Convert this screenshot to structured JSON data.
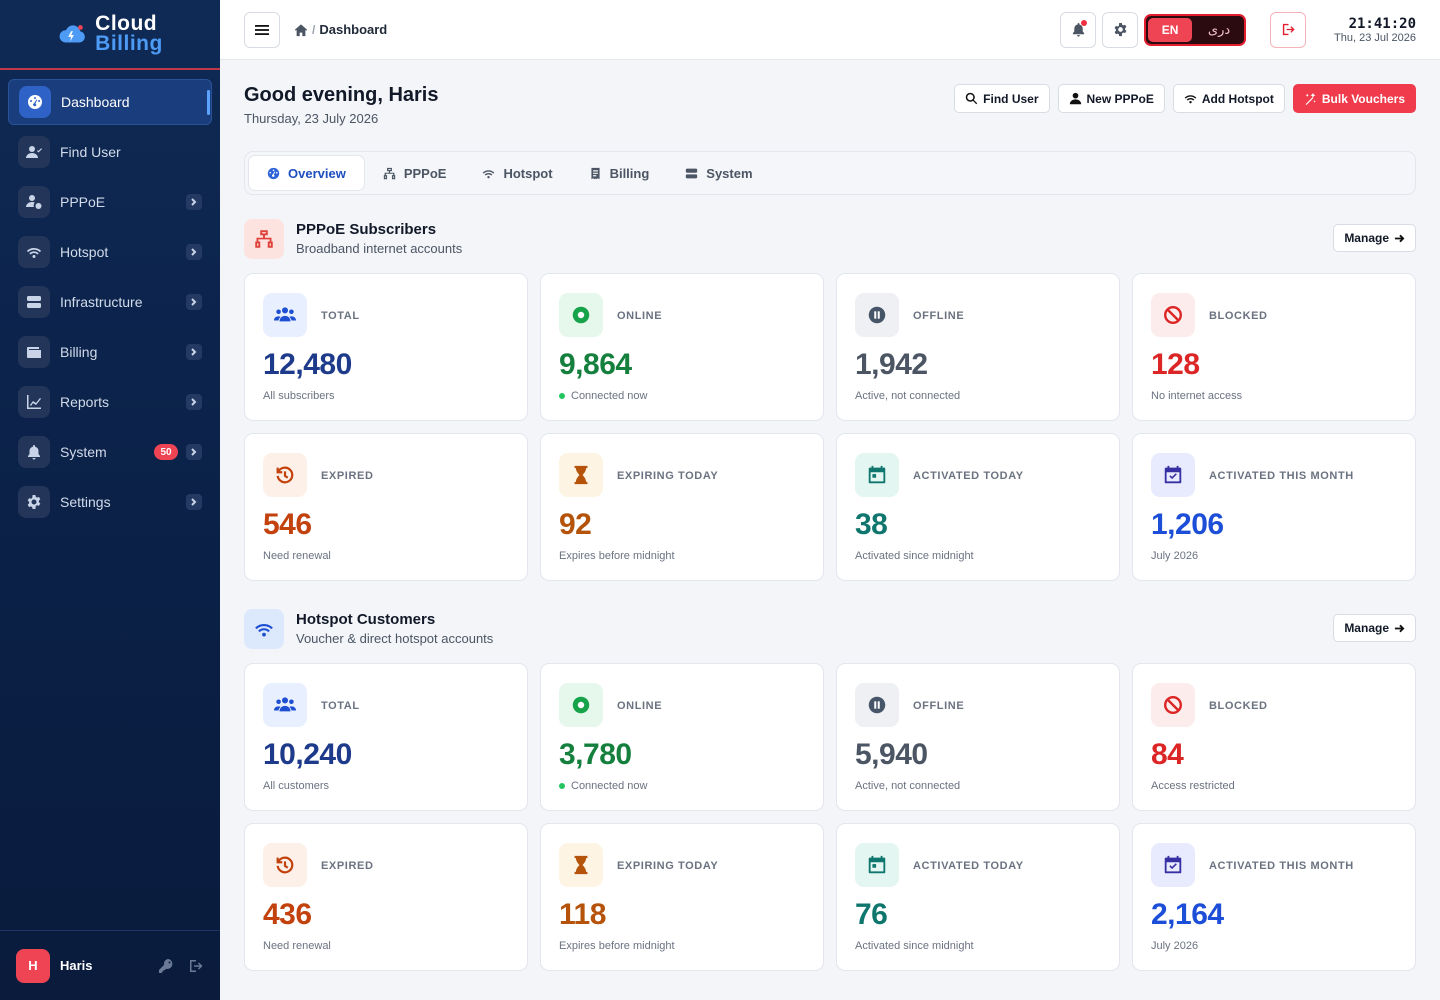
{
  "brand": {
    "line1": "Cloud",
    "line2": "Billing"
  },
  "sidebar": {
    "items": [
      {
        "label": "Dashboard",
        "icon": "gauge-icon",
        "active": true
      },
      {
        "label": "Find User",
        "icon": "user-check-icon"
      },
      {
        "label": "PPPoE",
        "icon": "user-network-icon"
      },
      {
        "label": "Hotspot",
        "icon": "wifi-icon"
      },
      {
        "label": "Infrastructure",
        "icon": "server-icon"
      },
      {
        "label": "Billing",
        "icon": "wallet-icon"
      },
      {
        "label": "Reports",
        "icon": "chart-line-icon"
      },
      {
        "label": "System",
        "icon": "bell-icon",
        "badge": "50"
      },
      {
        "label": "Settings",
        "icon": "gear-icon"
      }
    ]
  },
  "user": {
    "initial": "H",
    "name": "Haris"
  },
  "topbar": {
    "breadcrumb": "Dashboard",
    "lang_active": "EN",
    "lang_other": "دری",
    "time": "21:41:20",
    "date": "Thu, 23 Jul 2026"
  },
  "greeting": {
    "title": "Good evening, Haris",
    "date": "Thursday, 23 July 2026"
  },
  "actions": {
    "find_user": "Find User",
    "new_pppoe": "New PPPoE",
    "add_hotspot": "Add Hotspot",
    "bulk_vouchers": "Bulk Vouchers"
  },
  "tabs": [
    "Overview",
    "PPPoE",
    "Hotspot",
    "Billing",
    "System"
  ],
  "manage_label": "Manage",
  "pppoe": {
    "title": "PPPoE Subscribers",
    "subtitle": "Broadband internet accounts",
    "cards": [
      {
        "label": "TOTAL",
        "value": "12,480",
        "note": "All subscribers"
      },
      {
        "label": "ONLINE",
        "value": "9,864",
        "note": "Connected now"
      },
      {
        "label": "OFFLINE",
        "value": "1,942",
        "note": "Active, not connected"
      },
      {
        "label": "BLOCKED",
        "value": "128",
        "note": "No internet access"
      },
      {
        "label": "EXPIRED",
        "value": "546",
        "note": "Need renewal"
      },
      {
        "label": "EXPIRING TODAY",
        "value": "92",
        "note": "Expires before midnight"
      },
      {
        "label": "ACTIVATED TODAY",
        "value": "38",
        "note": "Activated since midnight"
      },
      {
        "label": "ACTIVATED THIS MONTH",
        "value": "1,206",
        "note": "July 2026"
      }
    ]
  },
  "hotspot": {
    "title": "Hotspot Customers",
    "subtitle": "Voucher & direct hotspot accounts",
    "cards": [
      {
        "label": "TOTAL",
        "value": "10,240",
        "note": "All customers"
      },
      {
        "label": "ONLINE",
        "value": "3,780",
        "note": "Connected now"
      },
      {
        "label": "OFFLINE",
        "value": "5,940",
        "note": "Active, not connected"
      },
      {
        "label": "BLOCKED",
        "value": "84",
        "note": "Access restricted"
      },
      {
        "label": "EXPIRED",
        "value": "436",
        "note": "Need renewal"
      },
      {
        "label": "EXPIRING TODAY",
        "value": "118",
        "note": "Expires before midnight"
      },
      {
        "label": "ACTIVATED TODAY",
        "value": "76",
        "note": "Activated since midnight"
      },
      {
        "label": "ACTIVATED THIS MONTH",
        "value": "2,164",
        "note": "July 2026"
      }
    ]
  },
  "colors": {
    "accent": "#2f63d8",
    "danger": "#ef4454",
    "total": "#1e3a8a",
    "online": "#15803d",
    "offline": "#4b5563",
    "blocked": "#dc2626",
    "expired": "#c2410c",
    "expiring": "#b45309",
    "activated_today": "#0f766e",
    "activated_month": "#1d4ed8"
  }
}
